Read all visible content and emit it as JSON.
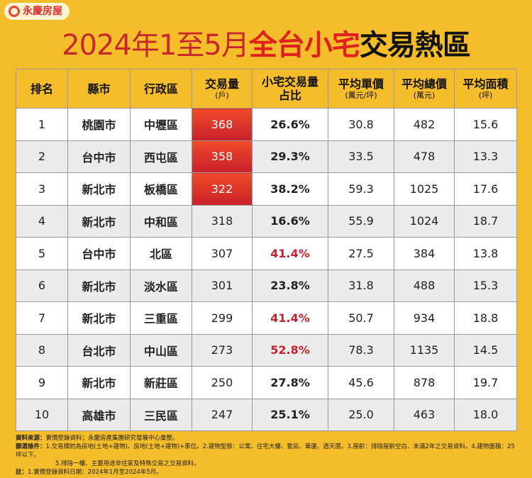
{
  "brand": "永慶房屋",
  "title": {
    "part1": "2024年1至5月",
    "part2": "全台小宅",
    "part3": "交易熱區"
  },
  "table": {
    "header": [
      {
        "lines": [
          "排名"
        ]
      },
      {
        "lines": [
          "縣市"
        ]
      },
      {
        "lines": [
          "行政區"
        ]
      },
      {
        "lines": [
          "交易量"
        ],
        "unit": "(戶)"
      },
      {
        "lines": [
          "小宅交易量",
          "占比"
        ]
      },
      {
        "lines": [
          "平均單價"
        ],
        "unit": "(萬元/坪)"
      },
      {
        "lines": [
          "平均總價"
        ],
        "unit": "(萬元)"
      },
      {
        "lines": [
          "平均面積"
        ],
        "unit": "(坪)"
      }
    ],
    "rows": [
      [
        "1",
        "桃園市",
        "中壢區",
        "368",
        "26.6%",
        "30.8",
        "482",
        "15.6"
      ],
      [
        "2",
        "台中市",
        "西屯區",
        "358",
        "29.3%",
        "33.5",
        "478",
        "13.3"
      ],
      [
        "3",
        "新北市",
        "板橋區",
        "322",
        "38.2%",
        "59.3",
        "1025",
        "17.6"
      ],
      [
        "4",
        "新北市",
        "中和區",
        "318",
        "16.6%",
        "55.9",
        "1024",
        "18.7"
      ],
      [
        "5",
        "台中市",
        "北區",
        "307",
        "41.4%",
        "27.5",
        "384",
        "13.8"
      ],
      [
        "6",
        "新北市",
        "淡水區",
        "301",
        "23.8%",
        "31.8",
        "488",
        "15.3"
      ],
      [
        "7",
        "新北市",
        "三重區",
        "299",
        "41.4%",
        "50.7",
        "934",
        "18.8"
      ],
      [
        "8",
        "台北市",
        "中山區",
        "273",
        "52.8%",
        "78.3",
        "1135",
        "14.5"
      ],
      [
        "9",
        "新北市",
        "新莊區",
        "250",
        "27.8%",
        "45.6",
        "878",
        "19.7"
      ],
      [
        "10",
        "高雄市",
        "三民區",
        "247",
        "25.1%",
        "25.0",
        "463",
        "18.0"
      ]
    ]
  },
  "notes": {
    "source_label": "資料來源：",
    "source": "實價登錄資料；永慶房產集團研究發展中心彙整。",
    "filter_label": "篩選條件：",
    "filter": [
      "1.交易標的為房地(土地+建物)、房地(土地+建物)+車位。2.建物型態：公寓、住宅大樓、套房、華廈、透天厝。3.屋齡：排除屋齡空白、未滿2年之交易資料。4.建物面積：25坪以下。",
      "5.排除一樓、主要用途非住家及特殊交易之交易資料。"
    ],
    "note_label": "註：",
    "note": "1.實價登錄資料日期：2024年1月至2024年5月。"
  }
}
